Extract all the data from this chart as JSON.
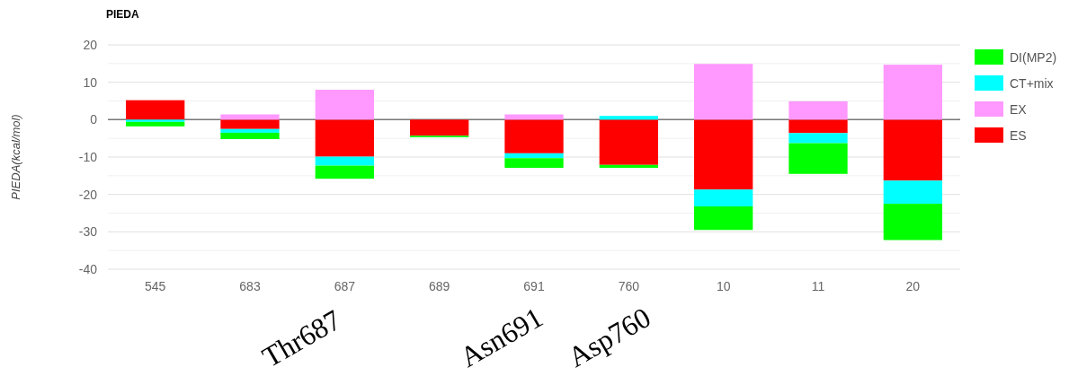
{
  "chart_data": {
    "type": "bar",
    "title": "PIEDA",
    "ylabel": "PIEDA(kcal/mol)",
    "stacked": true,
    "categories": [
      "545",
      "683",
      "687",
      "689",
      "691",
      "760",
      "10",
      "11",
      "20"
    ],
    "series": [
      {
        "name": "ES",
        "color": "#ff0000",
        "values": [
          5.2,
          -2.5,
          -9.9,
          -4.3,
          -9.0,
          -12.1,
          -18.7,
          -3.6,
          -16.3
        ]
      },
      {
        "name": "EX",
        "color": "#ff99ff",
        "values": [
          0,
          1.4,
          8.0,
          0,
          1.4,
          0,
          14.9,
          4.9,
          14.7
        ]
      },
      {
        "name": "CT+mix",
        "color": "#00ffff",
        "values": [
          -0.6,
          -1.0,
          -2.4,
          0,
          -1.3,
          1.0,
          -4.5,
          -2.7,
          -6.2
        ]
      },
      {
        "name": "DI(MP2)",
        "color": "#00ff00",
        "values": [
          -1.2,
          -1.7,
          -3.5,
          -0.4,
          -2.6,
          -0.8,
          -6.3,
          -8.2,
          -9.7
        ]
      }
    ],
    "ylim": [
      -40,
      20
    ],
    "yticks": [
      -40,
      {
        "value": -35,
        "label": null
      },
      -30,
      {
        "value": -25,
        "label": null
      },
      -20,
      {
        "value": -15,
        "label": null
      },
      -10,
      {
        "value": -5,
        "label": null
      },
      0,
      {
        "value": 5,
        "label": null
      },
      10,
      {
        "value": 15,
        "label": null
      },
      20
    ],
    "grid": true,
    "legend": "right",
    "annotations": [
      "Thr687",
      "Asn691",
      "Asp760"
    ]
  }
}
